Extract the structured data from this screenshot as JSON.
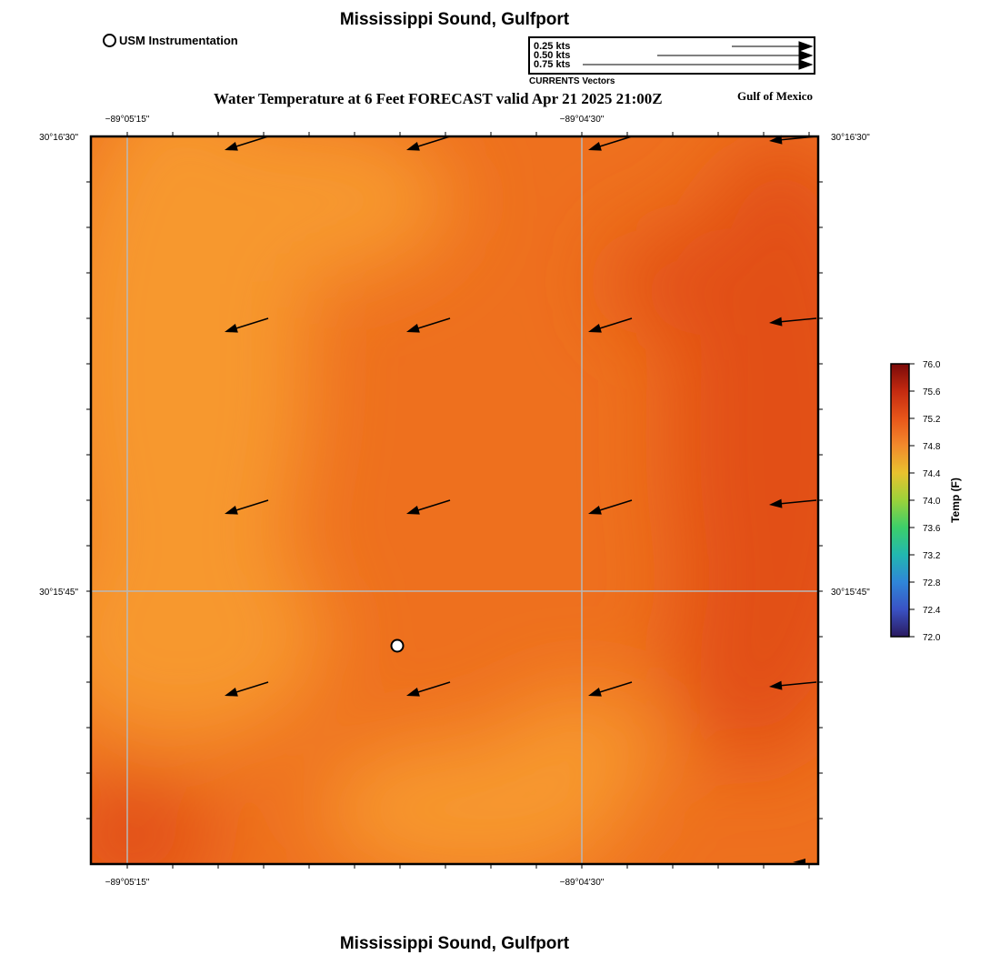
{
  "header": {
    "title": "Mississippi Sound, Gulfport",
    "subtitle": "Water Temperature at 6 Feet FORECAST valid Apr 21 2025 21:00Z",
    "region": "Gulf of Mexico",
    "footer_title": "Mississippi Sound, Gulfport"
  },
  "legend": {
    "station_label": "USM Instrumentation",
    "vector_scale": [
      {
        "label": "0.25 kts",
        "speed_kts": 0.25
      },
      {
        "label": "0.50 kts",
        "speed_kts": 0.5
      },
      {
        "label": "0.75 kts",
        "speed_kts": 0.75
      }
    ],
    "vector_caption": "CURRENTS Vectors"
  },
  "axes": {
    "lon_ticks": [
      "−89°05'15\"",
      "−89°04'30\""
    ],
    "lat_ticks": [
      "30°16'30\"",
      "30°15'45\""
    ],
    "gridlines": true
  },
  "colorbar": {
    "title": "Temp (F)",
    "min": 72.0,
    "max": 76.0,
    "ticks": [
      "76.0",
      "75.6",
      "75.2",
      "74.8",
      "74.4",
      "74.0",
      "73.6",
      "73.2",
      "72.8",
      "72.4",
      "72.0"
    ],
    "colors": [
      "#7a0a0a",
      "#c42a10",
      "#e8561a",
      "#f28a2c",
      "#e9c22e",
      "#9bd23a",
      "#3ccf6a",
      "#22b7b0",
      "#2f86d8",
      "#3a52c4",
      "#2a1a60"
    ]
  },
  "field": {
    "colors": {
      "light": "#f7982f",
      "mid": "#ee701e",
      "dark": "#e25012"
    }
  },
  "current_vectors": [
    {
      "row": 0,
      "col": 0
    },
    {
      "row": 0,
      "col": 1
    },
    {
      "row": 0,
      "col": 2
    },
    {
      "row": 0,
      "col": 3
    },
    {
      "row": 1,
      "col": 0
    },
    {
      "row": 1,
      "col": 1
    },
    {
      "row": 1,
      "col": 2
    },
    {
      "row": 1,
      "col": 3
    },
    {
      "row": 2,
      "col": 0
    },
    {
      "row": 2,
      "col": 1
    },
    {
      "row": 2,
      "col": 2
    },
    {
      "row": 2,
      "col": 3
    },
    {
      "row": 3,
      "col": 0
    },
    {
      "row": 3,
      "col": 1
    },
    {
      "row": 3,
      "col": 2
    },
    {
      "row": 3,
      "col": 3
    }
  ]
}
